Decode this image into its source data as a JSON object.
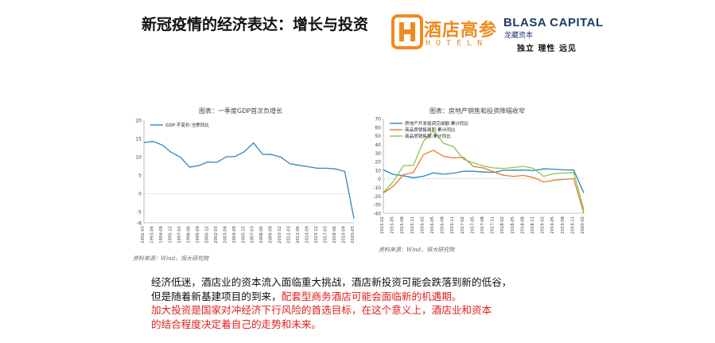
{
  "header": {
    "title": "新冠疫情的经济表达：增长与投资",
    "hotel_brand": "酒店高参",
    "hotel_brand_sub": "HOTELN",
    "partner_brand": "BLASA CAPITAL",
    "partner_brand_sub": "龙藏资本",
    "motto": "独立 理性 远见"
  },
  "colors": {
    "hotel_orange": "#ef8a1e",
    "partner_navy": "#1f3b6a",
    "gdp_line": "#2e86c1",
    "red_text": "#e0201b"
  },
  "chart_data": [
    {
      "type": "line",
      "title": "图表：一季度GDP首次负增长",
      "legend": [
        "GDP:不变价:当季同比"
      ],
      "legend_position": "top-left",
      "ylim": [
        -8,
        20
      ],
      "yticks": [
        "20",
        "15",
        "10",
        "5",
        "0",
        "-5",
        "-8"
      ],
      "x": [
        "1992-03",
        "1993-06",
        "1994-09",
        "1995-12",
        "1997-03",
        "1998-06",
        "1999-09",
        "2000-12",
        "2002-03",
        "2003-06",
        "2004-09",
        "2005-12",
        "2007-03",
        "2008-06",
        "2009-09",
        "2010-12",
        "2012-03",
        "2013-06",
        "2014-09",
        "2015-12",
        "2017-03",
        "2018-06",
        "2019-09",
        "2020-03"
      ],
      "series": [
        {
          "name": "GDP:不变价:当季同比",
          "values": [
            13.9,
            14.2,
            13.2,
            11.2,
            9.9,
            7.2,
            7.6,
            8.6,
            8.5,
            10.0,
            10.1,
            11.4,
            13.8,
            10.7,
            10.6,
            9.9,
            8.1,
            7.7,
            7.3,
            6.9,
            6.9,
            6.7,
            6.0,
            -6.8
          ]
        }
      ],
      "source": "资料来源：Wind，恒大研究院"
    },
    {
      "type": "line",
      "title": "图表：房地产销售和投资降幅收窄",
      "legend": [
        "房地产开发投资完成额:累计同比",
        "商品房销售面积:累计同比",
        "商品房销售额:累计同比"
      ],
      "legend_position": "top-left",
      "ylim": [
        -40,
        70
      ],
      "yticks": [
        "70",
        "60",
        "50",
        "40",
        "30",
        "20",
        "10",
        "0",
        "-10",
        "-20",
        "-30",
        "-40"
      ],
      "x": [
        "2015-02",
        "2015-05",
        "2015-08",
        "2015-11",
        "2016-02",
        "2016-05",
        "2016-08",
        "2016-11",
        "2017-02",
        "2017-05",
        "2017-08",
        "2017-11",
        "2018-02",
        "2018-05",
        "2018-08",
        "2018-11",
        "2019-02",
        "2019-05",
        "2019-08",
        "2019-11",
        "2020-02"
      ],
      "series": [
        {
          "name": "房地产开发投资完成额:累计同比",
          "values": [
            10.4,
            5.1,
            3.5,
            1.3,
            3.0,
            7.0,
            5.4,
            6.6,
            8.9,
            8.8,
            7.9,
            7.5,
            9.9,
            10.2,
            10.1,
            9.7,
            11.6,
            11.2,
            10.5,
            10.2,
            -16.3
          ]
        },
        {
          "name": "商品房销售面积:累计同比",
          "values": [
            -16.3,
            -8.6,
            4.9,
            7.4,
            28.2,
            33.2,
            26.2,
            24.3,
            25.1,
            14.3,
            12.7,
            8.2,
            4.1,
            2.9,
            4.0,
            1.4,
            -3.6,
            -1.6,
            -0.6,
            0.2,
            -39.9
          ]
        },
        {
          "name": "商品房销售额:累计同比",
          "values": [
            -15.8,
            -3.1,
            15.3,
            15.6,
            43.6,
            55.9,
            41.3,
            37.5,
            22.7,
            18.6,
            14.8,
            12.7,
            12.0,
            13.2,
            14.5,
            12.1,
            2.8,
            6.1,
            6.7,
            7.3,
            -35.9
          ]
        }
      ],
      "source": "资料来源：Wind，恒大研究院"
    }
  ],
  "chart_colors": [
    "#2e86c1",
    "#e07b2a",
    "#8dc44b"
  ],
  "body": {
    "line1": "经济低迷，酒店业的资本流入面临重大挑战，酒店新投资可能会跌落到新的低谷，",
    "line2_black": "但是随着新基建项目的到来，",
    "line2_red": "配套型商务酒店可能会面临新的机遇期。",
    "line3": "加大投资是国家对冲经济下行风险的首选目标，在这个意义上，酒店业和资本",
    "line4": "的结合程度决定着自己的走势和未来。"
  }
}
